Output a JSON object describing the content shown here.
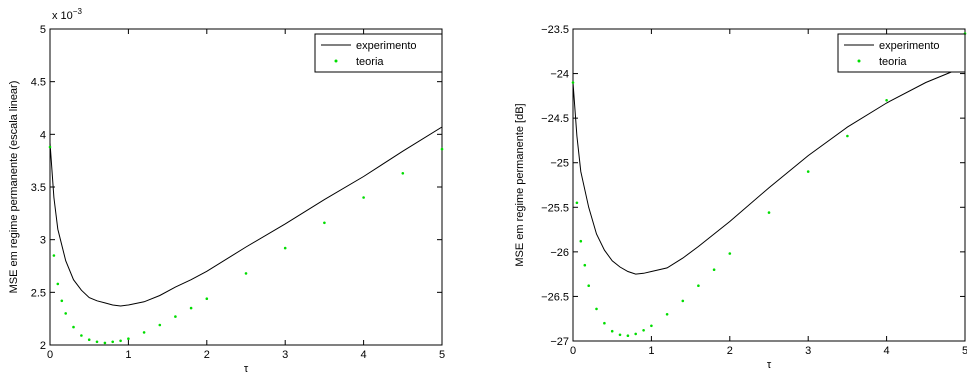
{
  "chart_data": [
    {
      "type": "line",
      "xlabel": "τ",
      "ylabel": "MSE em regime permanente (escala linear)",
      "exponent_label": "x 10",
      "exponent_power": "−3",
      "xlim": [
        0,
        5
      ],
      "ylim": [
        2,
        5
      ],
      "xticks": [
        0,
        1,
        2,
        3,
        4,
        5
      ],
      "xtick_labels": [
        "0",
        "1",
        "2",
        "3",
        "4",
        "5"
      ],
      "yticks": [
        2,
        2.5,
        3,
        3.5,
        4,
        4.5,
        5
      ],
      "ytick_labels": [
        "2",
        "2.5",
        "3",
        "3.5",
        "4",
        "4.5",
        "5"
      ],
      "legend_position": "top-right",
      "grid": false,
      "series": [
        {
          "name": "experimento",
          "style": "solid",
          "color": "#000000",
          "x": [
            0,
            0.05,
            0.1,
            0.2,
            0.3,
            0.4,
            0.5,
            0.6,
            0.7,
            0.8,
            0.9,
            1.0,
            1.2,
            1.4,
            1.6,
            1.8,
            2.0,
            2.5,
            3.0,
            3.5,
            4.0,
            4.5,
            5.0
          ],
          "values": [
            3.92,
            3.4,
            3.1,
            2.8,
            2.62,
            2.52,
            2.45,
            2.42,
            2.4,
            2.38,
            2.37,
            2.38,
            2.41,
            2.47,
            2.55,
            2.62,
            2.7,
            2.93,
            3.15,
            3.38,
            3.6,
            3.84,
            4.07
          ]
        },
        {
          "name": "teoria",
          "style": "dotted",
          "color": "#00dd00",
          "x": [
            0,
            0.05,
            0.1,
            0.15,
            0.2,
            0.3,
            0.4,
            0.5,
            0.6,
            0.7,
            0.8,
            0.9,
            1.0,
            1.2,
            1.4,
            1.6,
            1.8,
            2.0,
            2.5,
            3.0,
            3.5,
            4.0,
            4.5,
            5.0
          ],
          "values": [
            3.88,
            2.85,
            2.58,
            2.42,
            2.3,
            2.17,
            2.09,
            2.05,
            2.03,
            2.02,
            2.03,
            2.04,
            2.06,
            2.12,
            2.19,
            2.27,
            2.35,
            2.44,
            2.68,
            2.92,
            3.16,
            3.4,
            3.63,
            3.86
          ]
        }
      ]
    },
    {
      "type": "line",
      "xlabel": "τ",
      "ylabel": "MSE em regime permanente [dB]",
      "xlim": [
        0,
        5
      ],
      "ylim": [
        -27,
        -23.5
      ],
      "xticks": [
        0,
        1,
        2,
        3,
        4,
        5
      ],
      "xtick_labels": [
        "0",
        "1",
        "2",
        "3",
        "4",
        "5"
      ],
      "yticks": [
        -27,
        -26.5,
        -26,
        -25.5,
        -25,
        -24.5,
        -24,
        -23.5
      ],
      "ytick_labels": [
        "−27",
        "−26.5",
        "−26",
        "−25.5",
        "−25",
        "−24.5",
        "−24",
        "−23.5"
      ],
      "legend_position": "top-right",
      "grid": false,
      "series": [
        {
          "name": "experimento",
          "style": "solid",
          "color": "#000000",
          "x": [
            0,
            0.05,
            0.1,
            0.2,
            0.3,
            0.4,
            0.5,
            0.6,
            0.7,
            0.8,
            0.9,
            1.0,
            1.2,
            1.4,
            1.6,
            1.8,
            2.0,
            2.5,
            3.0,
            3.5,
            4.0,
            4.5,
            5.0
          ],
          "values": [
            -24.1,
            -24.7,
            -25.1,
            -25.5,
            -25.8,
            -25.98,
            -26.1,
            -26.17,
            -26.22,
            -26.25,
            -26.24,
            -26.22,
            -26.18,
            -26.07,
            -25.94,
            -25.8,
            -25.66,
            -25.28,
            -24.92,
            -24.6,
            -24.33,
            -24.1,
            -23.92
          ]
        },
        {
          "name": "teoria",
          "style": "dotted",
          "color": "#00dd00",
          "x": [
            0,
            0.05,
            0.1,
            0.15,
            0.2,
            0.3,
            0.4,
            0.5,
            0.6,
            0.7,
            0.8,
            0.9,
            1.0,
            1.2,
            1.4,
            1.6,
            1.8,
            2.0,
            2.5,
            3.0,
            3.5,
            4.0,
            4.5,
            5.0
          ],
          "values": [
            -24.1,
            -25.45,
            -25.88,
            -26.15,
            -26.38,
            -26.64,
            -26.8,
            -26.89,
            -26.93,
            -26.94,
            -26.92,
            -26.88,
            -26.83,
            -26.7,
            -26.55,
            -26.38,
            -26.2,
            -26.02,
            -25.56,
            -25.1,
            -24.7,
            -24.3,
            -23.92,
            -23.55
          ]
        }
      ]
    }
  ]
}
